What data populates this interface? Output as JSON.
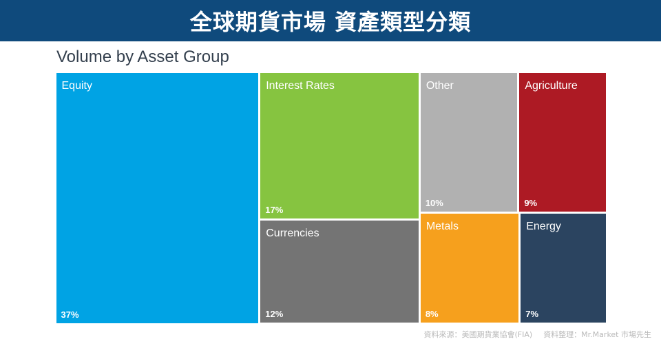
{
  "banner": {
    "title": "全球期貨市場 資產類型分類"
  },
  "chart_data": {
    "type": "treemap",
    "title": "Volume by Asset Group",
    "unit": "%",
    "items": [
      {
        "label": "Equity",
        "value": 37,
        "value_label": "37%",
        "color": "#00a3e4"
      },
      {
        "label": "Interest Rates",
        "value": 17,
        "value_label": "17%",
        "color": "#86c440"
      },
      {
        "label": "Currencies",
        "value": 12,
        "value_label": "12%",
        "color": "#747474"
      },
      {
        "label": "Other",
        "value": 10,
        "value_label": "10%",
        "color": "#b1b1b1"
      },
      {
        "label": "Agriculture",
        "value": 9,
        "value_label": "9%",
        "color": "#ad1a24"
      },
      {
        "label": "Metals",
        "value": 8,
        "value_label": "8%",
        "color": "#f6a01d"
      },
      {
        "label": "Energy",
        "value": 7,
        "value_label": "7%",
        "color": "#2b4460"
      }
    ]
  },
  "footer": {
    "source": "資料來源：美國期貨業協會(FIA)",
    "compiled_by": "資料整理：Mr.Market 市場先生"
  }
}
